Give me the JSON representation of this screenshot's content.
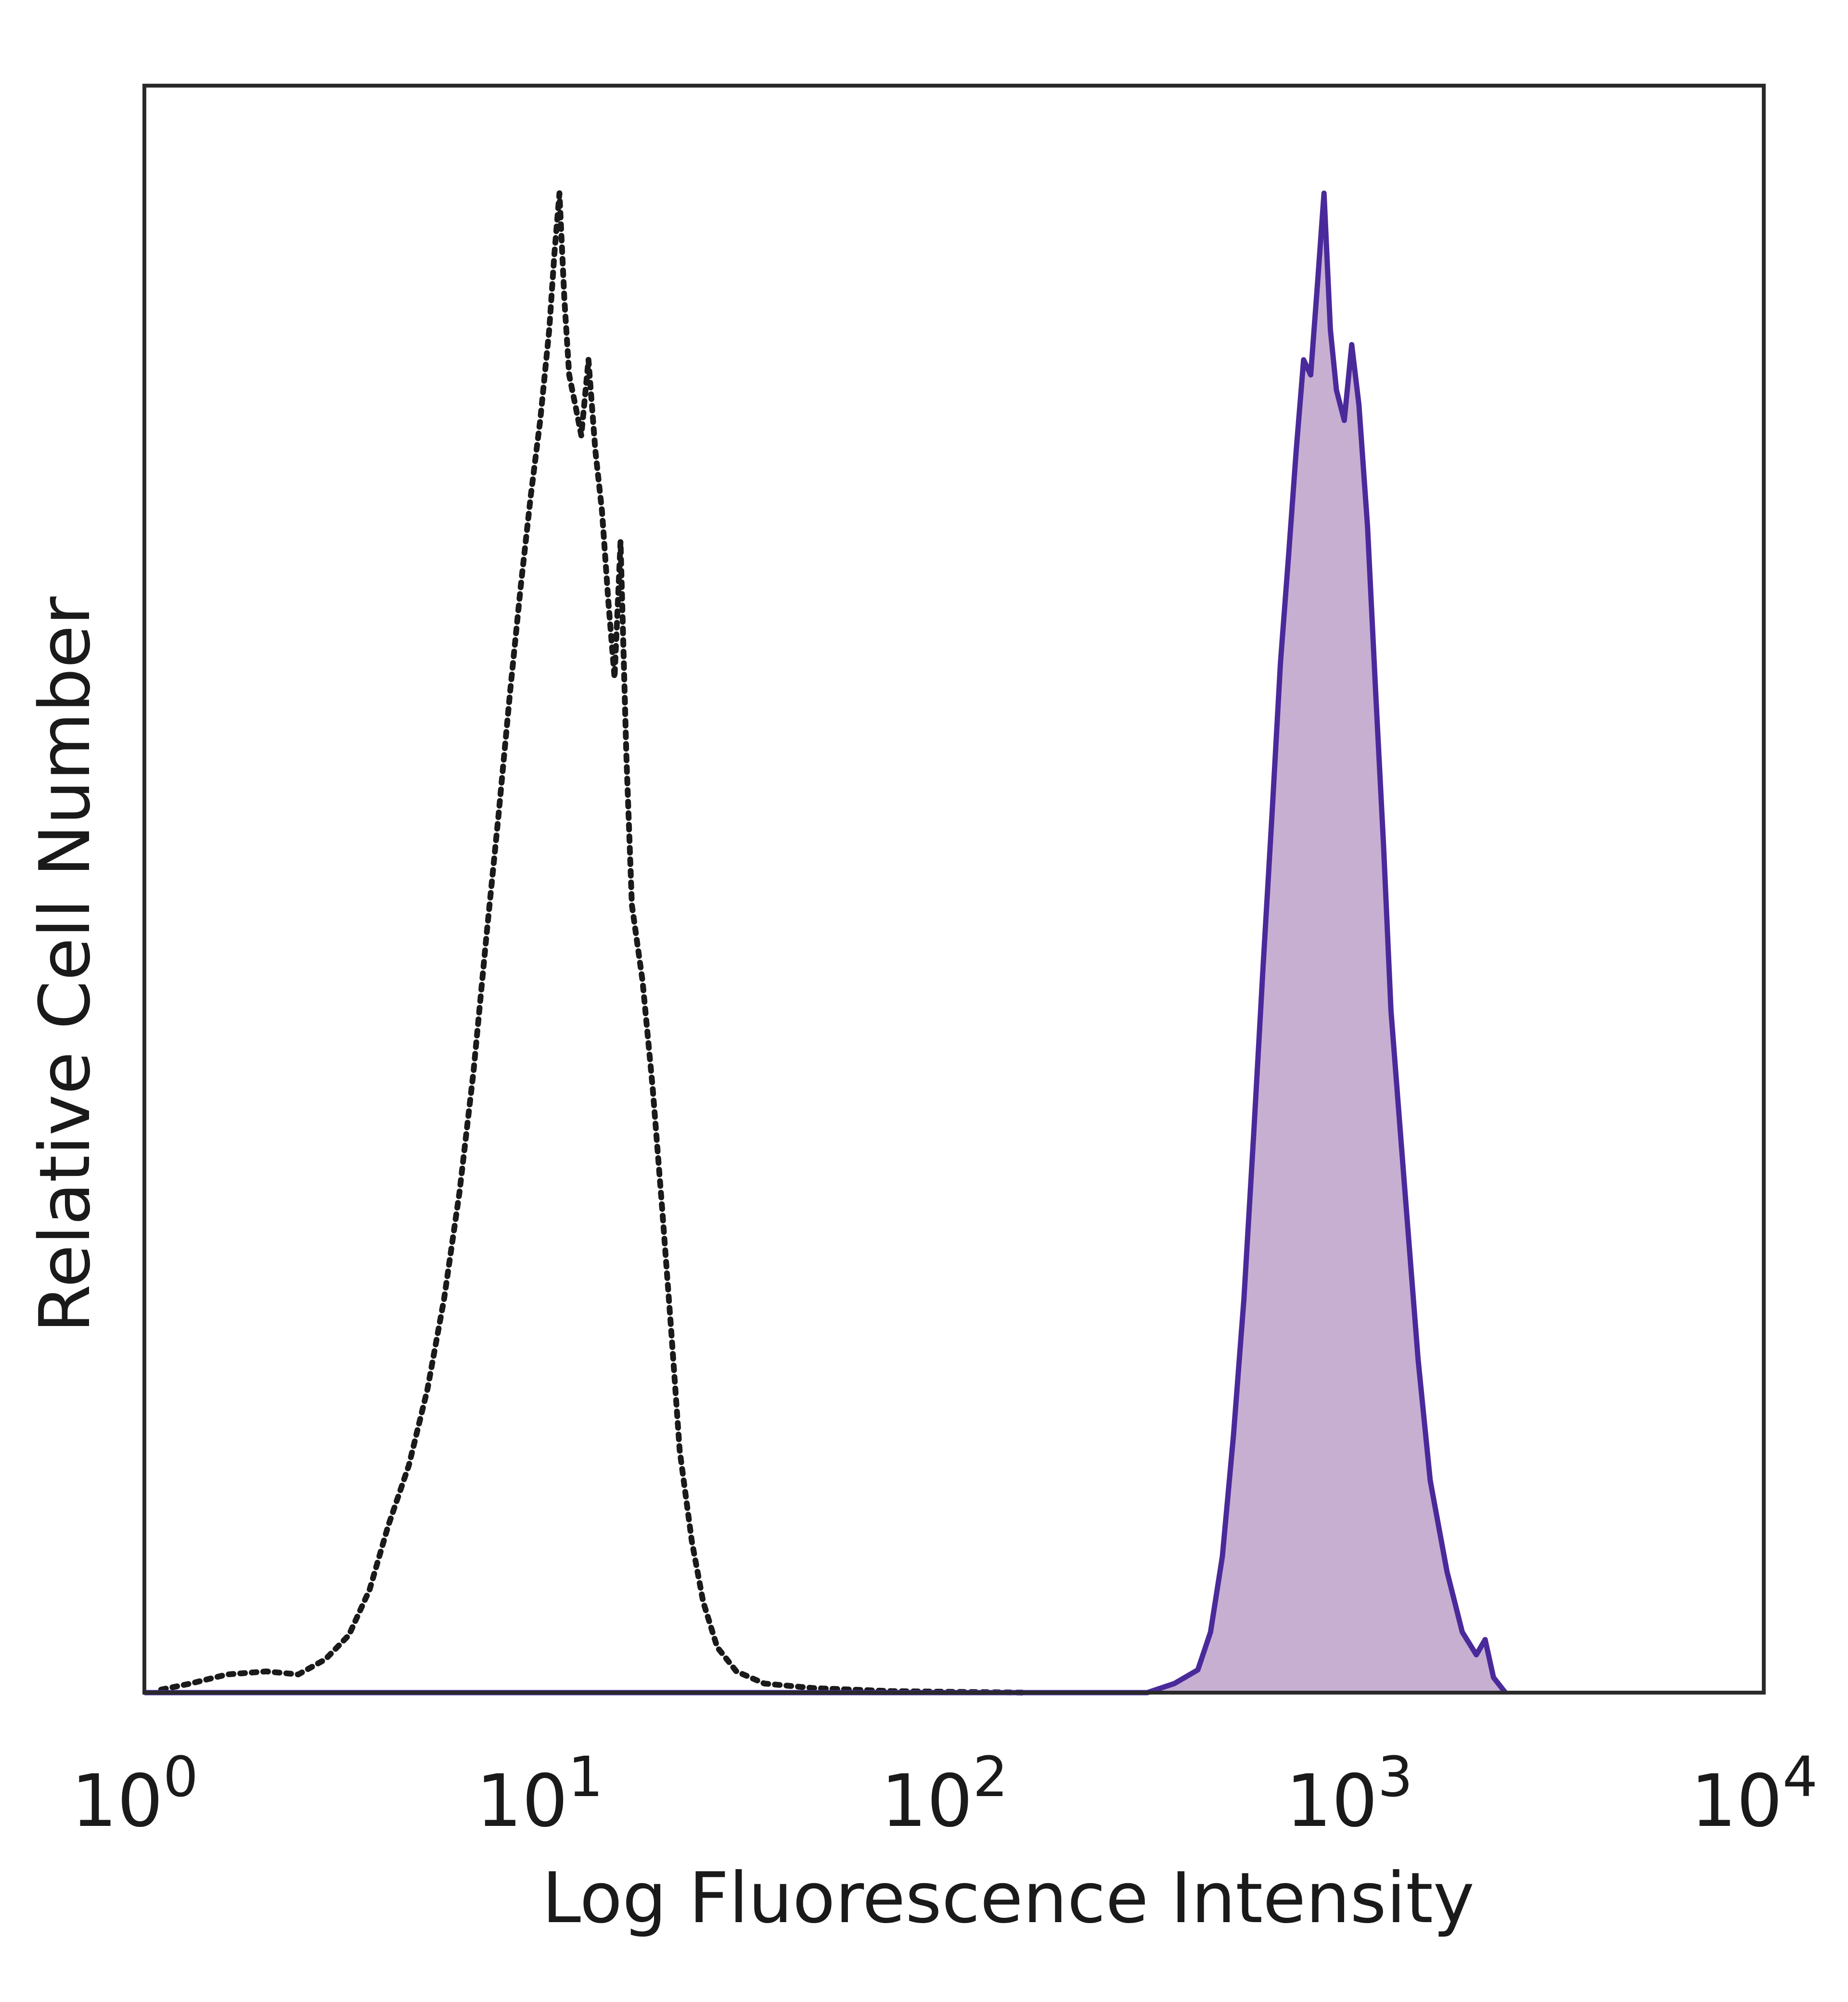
{
  "chart_data": {
    "type": "area",
    "title": "",
    "xlabel": "Log Fluorescence Intensity",
    "ylabel": "Relative Cell Number",
    "x_scale": "log",
    "xlim": [
      1,
      10000
    ],
    "ylim": [
      0,
      1.0
    ],
    "grid": false,
    "x_ticks": [
      {
        "base": "10",
        "exp": "0",
        "value": 1
      },
      {
        "base": "10",
        "exp": "1",
        "value": 10
      },
      {
        "base": "10",
        "exp": "2",
        "value": 100
      },
      {
        "base": "10",
        "exp": "3",
        "value": 1000
      },
      {
        "base": "10",
        "exp": "4",
        "value": 10000
      }
    ],
    "series": [
      {
        "style": "dotted",
        "color": "#1a1a1a",
        "fill": "none",
        "points": [
          [
            1.1,
            0.002
          ],
          [
            1.3,
            0.006
          ],
          [
            1.6,
            0.012
          ],
          [
            2.0,
            0.014
          ],
          [
            2.4,
            0.012
          ],
          [
            2.8,
            0.022
          ],
          [
            3.2,
            0.038
          ],
          [
            3.6,
            0.068
          ],
          [
            4.0,
            0.11
          ],
          [
            4.5,
            0.15
          ],
          [
            5.0,
            0.2
          ],
          [
            5.5,
            0.26
          ],
          [
            6.0,
            0.33
          ],
          [
            6.5,
            0.41
          ],
          [
            7.0,
            0.5
          ],
          [
            7.5,
            0.58
          ],
          [
            8.0,
            0.66
          ],
          [
            8.5,
            0.73
          ],
          [
            9.0,
            0.79
          ],
          [
            9.5,
            0.84
          ],
          [
            10.0,
            0.9
          ],
          [
            10.3,
            0.95
          ],
          [
            10.6,
            0.99
          ],
          [
            10.9,
            0.92
          ],
          [
            11.2,
            0.87
          ],
          [
            11.6,
            0.85
          ],
          [
            12.0,
            0.83
          ],
          [
            12.5,
            0.88
          ],
          [
            13.0,
            0.82
          ],
          [
            13.5,
            0.78
          ],
          [
            14.0,
            0.72
          ],
          [
            14.5,
            0.67
          ],
          [
            15.0,
            0.76
          ],
          [
            15.5,
            0.62
          ],
          [
            16.0,
            0.52
          ],
          [
            17.0,
            0.47
          ],
          [
            18.0,
            0.4
          ],
          [
            19.0,
            0.32
          ],
          [
            20.0,
            0.24
          ],
          [
            21.0,
            0.16
          ],
          [
            22.5,
            0.1
          ],
          [
            24.0,
            0.06
          ],
          [
            26.0,
            0.03
          ],
          [
            29.0,
            0.014
          ],
          [
            34.0,
            0.006
          ],
          [
            45.0,
            0.003
          ],
          [
            70.0,
            0.001
          ],
          [
            150.0,
            0.0
          ]
        ]
      },
      {
        "style": "solid",
        "color": "#4a2a9a",
        "fill": "#c7afd2",
        "points": [
          [
            1.0,
            0.0
          ],
          [
            300.0,
            0.0
          ],
          [
            350.0,
            0.006
          ],
          [
            400.0,
            0.015
          ],
          [
            430.0,
            0.04
          ],
          [
            460.0,
            0.09
          ],
          [
            490.0,
            0.17
          ],
          [
            520.0,
            0.26
          ],
          [
            550.0,
            0.37
          ],
          [
            580.0,
            0.48
          ],
          [
            610.0,
            0.58
          ],
          [
            640.0,
            0.68
          ],
          [
            670.0,
            0.75
          ],
          [
            700.0,
            0.82
          ],
          [
            730.0,
            0.88
          ],
          [
            760.0,
            0.87
          ],
          [
            790.0,
            0.93
          ],
          [
            820.0,
            0.99
          ],
          [
            850.0,
            0.9
          ],
          [
            880.0,
            0.86
          ],
          [
            920.0,
            0.84
          ],
          [
            960.0,
            0.89
          ],
          [
            1000.0,
            0.85
          ],
          [
            1050.0,
            0.77
          ],
          [
            1100.0,
            0.66
          ],
          [
            1150.0,
            0.56
          ],
          [
            1200.0,
            0.45
          ],
          [
            1300.0,
            0.33
          ],
          [
            1400.0,
            0.22
          ],
          [
            1500.0,
            0.14
          ],
          [
            1650.0,
            0.08
          ],
          [
            1800.0,
            0.04
          ],
          [
            1950.0,
            0.025
          ],
          [
            2050.0,
            0.035
          ],
          [
            2150.0,
            0.01
          ],
          [
            2300.0,
            0.0
          ]
        ]
      }
    ]
  }
}
